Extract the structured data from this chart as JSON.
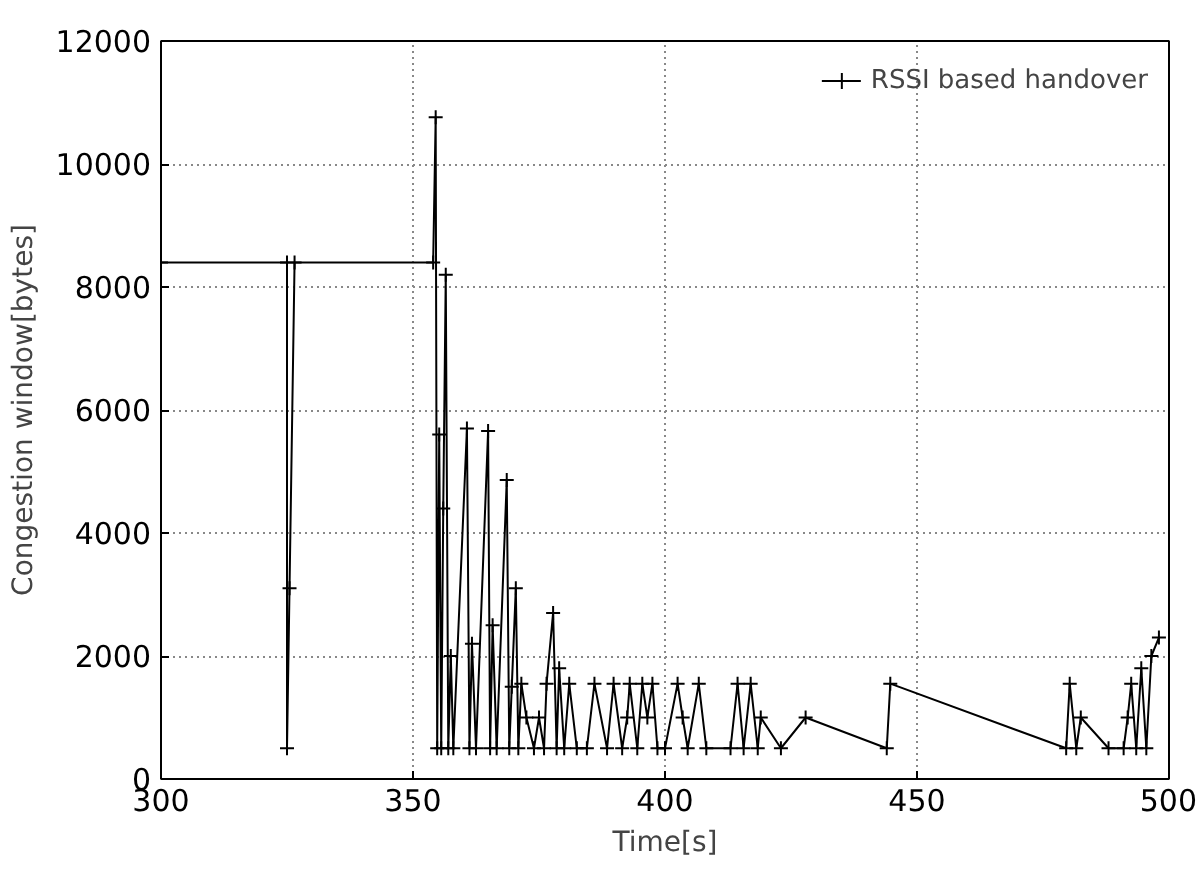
{
  "chart_data": {
    "type": "line",
    "xlabel": "Time[s]",
    "ylabel": "Congestion window[bytes]",
    "xlim": [
      300,
      500
    ],
    "ylim": [
      0,
      12000
    ],
    "xticks": [
      300,
      350,
      400,
      450,
      500
    ],
    "yticks": [
      0,
      2000,
      4000,
      6000,
      8000,
      10000,
      12000
    ],
    "grid": true,
    "legend": "top right",
    "marker": "cross",
    "line_style": "solid",
    "series": [
      {
        "name": "RSSI based handover",
        "color": "#000000",
        "x": [
          300,
          325,
          325,
          325.5,
          326.5,
          354,
          354.5,
          354.8,
          355.2,
          355.6,
          356,
          356.5,
          357,
          357.5,
          358,
          360.7,
          361.2,
          361.7,
          362.5,
          364.9,
          365.3,
          365.8,
          366.6,
          368.6,
          369.1,
          369.6,
          370.4,
          370.9,
          371.5,
          372.5,
          374,
          375,
          376,
          376.5,
          377.8,
          378.5,
          379,
          380,
          381,
          382.5,
          384.5,
          386,
          388.5,
          389.8,
          391.5,
          392.5,
          393,
          394.5,
          395.5,
          396.5,
          397.5,
          398.5,
          400,
          402.5,
          403.5,
          404.5,
          406.7,
          408.2,
          413,
          414.4,
          415.6,
          417,
          418.4,
          419,
          423,
          427.9,
          444,
          444.7,
          479.6,
          480.3,
          481.6,
          482.5,
          488,
          491,
          491.8,
          492.5,
          493.5,
          494.5,
          495.5,
          496.5,
          498
        ],
        "values": [
          8400,
          8400,
          500,
          3100,
          8400,
          8400,
          10760,
          500,
          5600,
          500,
          4400,
          8200,
          500,
          2000,
          500,
          5700,
          500,
          2200,
          500,
          5660,
          500,
          2500,
          500,
          4860,
          500,
          1500,
          3100,
          500,
          1550,
          1000,
          500,
          1000,
          500,
          1550,
          2700,
          500,
          1800,
          500,
          1550,
          500,
          500,
          1550,
          500,
          1550,
          500,
          1000,
          1550,
          500,
          1550,
          1000,
          1550,
          500,
          500,
          1550,
          1000,
          500,
          1550,
          500,
          500,
          1550,
          500,
          1550,
          500,
          1000,
          500,
          1000,
          500,
          1550,
          500,
          1550,
          500,
          1000,
          500,
          500,
          1000,
          1550,
          500,
          1800,
          500,
          2000,
          2300
        ]
      }
    ]
  }
}
